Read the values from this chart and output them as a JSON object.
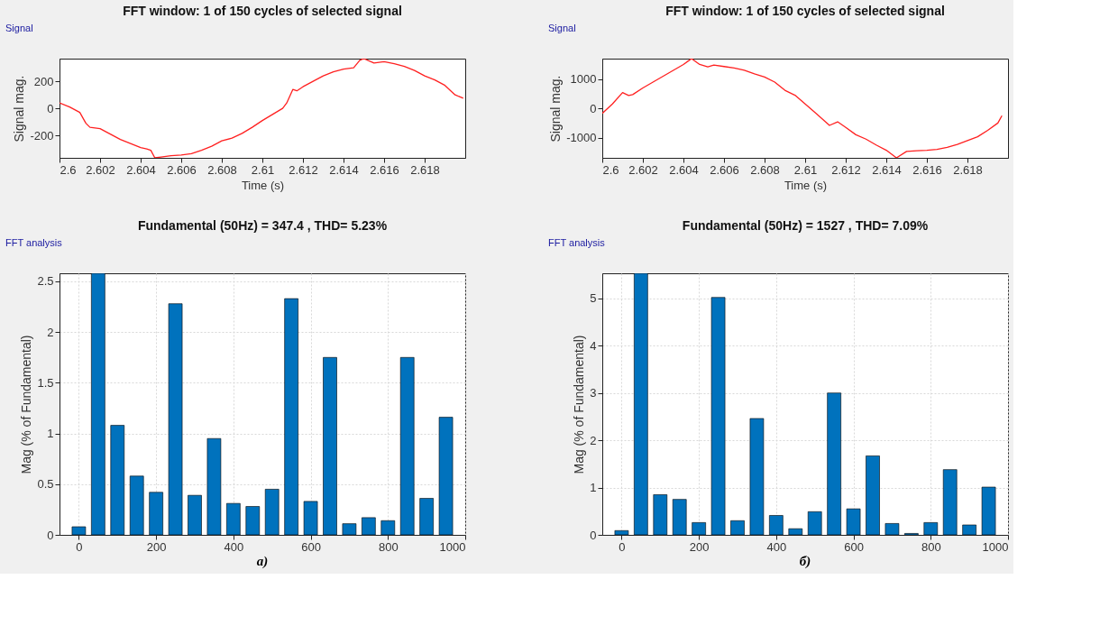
{
  "chart_data": [
    {
      "type": "line",
      "title": "FFT window: 1 of 150 cycles of selected signal",
      "xlabel": "Time (s)",
      "ylabel": "Signal mag.",
      "annotations": [
        "Signal"
      ],
      "grid": false,
      "marker": "none",
      "xlim": [
        2.6,
        2.62
      ],
      "xticks": [
        2.6,
        2.602,
        2.604,
        2.606,
        2.608,
        2.61,
        2.612,
        2.614,
        2.616,
        2.618
      ],
      "ylim": [
        -366,
        368
      ],
      "yticks": [
        -200,
        0,
        200
      ],
      "series": [
        {
          "color": "#ff2020",
          "x": [
            2.6,
            2.6005,
            2.601,
            2.6013,
            2.6015,
            2.602,
            2.6025,
            2.603,
            2.6035,
            2.604,
            2.6043,
            2.6045,
            2.6047,
            2.605,
            2.6055,
            2.606,
            2.6065,
            2.607,
            2.6075,
            2.608,
            2.6085,
            2.609,
            2.6095,
            2.61,
            2.6105,
            2.611,
            2.6112,
            2.6115,
            2.6117,
            2.612,
            2.6125,
            2.613,
            2.6135,
            2.614,
            2.6145,
            2.6148,
            2.615,
            2.6155,
            2.616,
            2.6165,
            2.617,
            2.6175,
            2.618,
            2.6185,
            2.619,
            2.6195,
            2.6199
          ],
          "values": [
            40,
            10,
            -30,
            -110,
            -140,
            -150,
            -190,
            -230,
            -260,
            -290,
            -300,
            -310,
            -366,
            -360,
            -350,
            -345,
            -335,
            -310,
            -280,
            -240,
            -220,
            -185,
            -140,
            -90,
            -45,
            0,
            40,
            140,
            130,
            160,
            200,
            240,
            270,
            290,
            300,
            355,
            368,
            335,
            345,
            330,
            310,
            280,
            240,
            210,
            170,
            100,
            75
          ]
        }
      ]
    },
    {
      "type": "line",
      "title": "FFT window: 1 of 150 cycles of selected signal",
      "xlabel": "Time (s)",
      "ylabel": "Signal mag.",
      "annotations": [
        "Signal"
      ],
      "grid": false,
      "marker": "none",
      "xlim": [
        2.6,
        2.62
      ],
      "xticks": [
        2.6,
        2.602,
        2.604,
        2.606,
        2.608,
        2.61,
        2.612,
        2.614,
        2.616,
        2.618
      ],
      "ylim": [
        -1690,
        1700
      ],
      "yticks": [
        -1000,
        0,
        1000
      ],
      "series": [
        {
          "color": "#ff2020",
          "x": [
            2.6,
            2.6005,
            2.601,
            2.6013,
            2.6015,
            2.602,
            2.6025,
            2.603,
            2.6035,
            2.604,
            2.6044,
            2.6048,
            2.6052,
            2.6055,
            2.606,
            2.6065,
            2.607,
            2.6075,
            2.608,
            2.6085,
            2.609,
            2.6095,
            2.61,
            2.6105,
            2.6112,
            2.6116,
            2.612,
            2.6125,
            2.613,
            2.6135,
            2.614,
            2.6145,
            2.615,
            2.6155,
            2.616,
            2.6165,
            2.617,
            2.6175,
            2.618,
            2.6185,
            2.619,
            2.6195,
            2.6197
          ],
          "values": [
            -170,
            150,
            540,
            440,
            470,
            700,
            900,
            1100,
            1300,
            1500,
            1700,
            1500,
            1420,
            1480,
            1430,
            1380,
            1300,
            1180,
            1070,
            900,
            620,
            450,
            150,
            -150,
            -580,
            -460,
            -650,
            -900,
            -1050,
            -1250,
            -1430,
            -1690,
            -1470,
            -1450,
            -1430,
            -1400,
            -1330,
            -1230,
            -1100,
            -970,
            -750,
            -500,
            -250
          ]
        }
      ]
    },
    {
      "type": "bar",
      "title": "Fundamental (50Hz) = 347.4 , THD= 5.23%",
      "ylabel": "Mag (% of Fundamental)",
      "annotations": [
        "FFT analysis",
        "а)"
      ],
      "grid": true,
      "xlim": [
        -50,
        1000
      ],
      "xticks": [
        0,
        200,
        400,
        600,
        800,
        1000
      ],
      "ylim": [
        0,
        2.58
      ],
      "yticks": [
        0,
        0.5,
        1,
        1.5,
        2,
        2.5
      ],
      "x": [
        0,
        50,
        100,
        150,
        200,
        250,
        300,
        350,
        400,
        450,
        500,
        550,
        600,
        650,
        700,
        750,
        800,
        850,
        900,
        950
      ],
      "series": [
        {
          "color": "#0072bd",
          "values": [
            0.08,
            2.58,
            1.08,
            0.58,
            0.42,
            2.28,
            0.39,
            0.95,
            0.31,
            0.28,
            0.45,
            2.33,
            0.33,
            1.75,
            0.11,
            0.17,
            0.14,
            1.75,
            0.36,
            1.16
          ]
        }
      ]
    },
    {
      "type": "bar",
      "title": "Fundamental (50Hz) = 1527 , THD= 7.09%",
      "ylabel": "Mag (% of Fundamental)",
      "annotations": [
        "FFT analysis",
        "б)"
      ],
      "grid": true,
      "xlim": [
        -50,
        1000
      ],
      "xticks": [
        0,
        200,
        400,
        600,
        800,
        1000
      ],
      "ylim": [
        0,
        5.53
      ],
      "yticks": [
        0,
        1,
        2,
        3,
        4,
        5
      ],
      "x": [
        0,
        50,
        100,
        150,
        200,
        250,
        300,
        350,
        400,
        450,
        500,
        550,
        600,
        650,
        700,
        750,
        800,
        850,
        900,
        950
      ],
      "series": [
        {
          "color": "#0072bd",
          "values": [
            0.09,
            5.53,
            0.85,
            0.75,
            0.26,
            5.02,
            0.3,
            2.46,
            0.41,
            0.13,
            0.49,
            3.0,
            0.55,
            1.67,
            0.24,
            0.03,
            0.26,
            1.38,
            0.21,
            1.01
          ]
        }
      ]
    }
  ]
}
